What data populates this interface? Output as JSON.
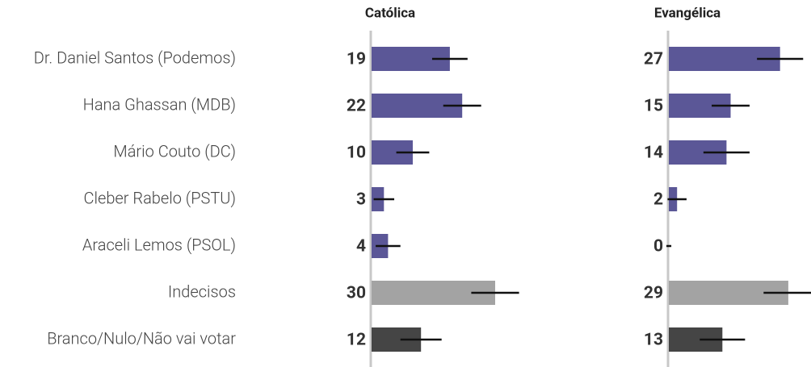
{
  "chart_data": {
    "type": "bar",
    "categories": [
      "Dr. Daniel Santos (Podemos)",
      "Hana Ghassan (MDB)",
      "Mário Couto (DC)",
      "Cleber Rabelo (PSTU)",
      "Araceli Lemos (PSOL)",
      "Indecisos",
      "Branco/Nulo/Não vai votar"
    ],
    "colors": [
      "#5b5797",
      "#5b5797",
      "#5b5797",
      "#5b5797",
      "#5b5797",
      "#a3a3a3",
      "#454545"
    ],
    "series": [
      {
        "name": "Católica",
        "values": [
          19,
          22,
          10,
          3,
          4,
          30,
          12
        ],
        "errors": [
          4.3,
          4.6,
          4,
          2.5,
          3,
          5.8,
          5
        ]
      },
      {
        "name": "Evangélica",
        "values": [
          27,
          15,
          14,
          2,
          0,
          29,
          13
        ],
        "errors": [
          5.6,
          4.6,
          5.6,
          2.3,
          0.6,
          6,
          5.5
        ]
      }
    ]
  }
}
